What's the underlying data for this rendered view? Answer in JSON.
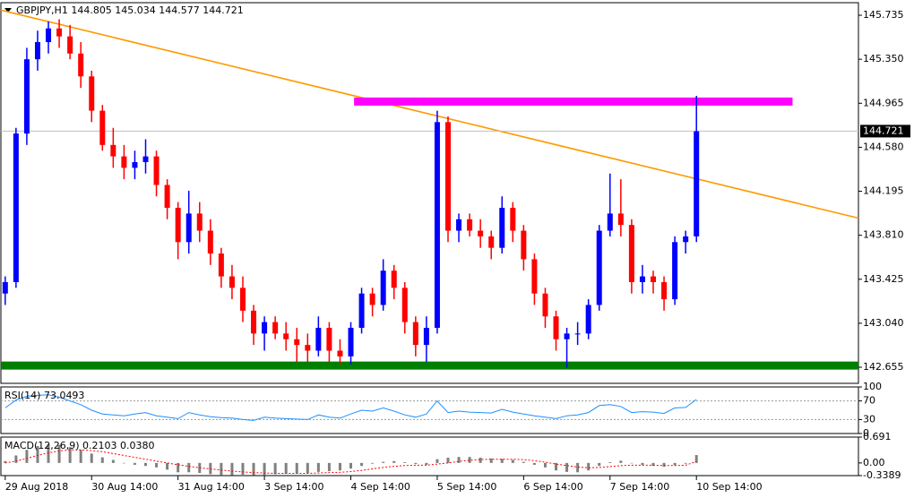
{
  "chart_data": [
    {
      "type": "candlestick",
      "title": "GBPJPY,H1  144.805 145.034 144.577 144.721",
      "x": [
        0,
        1,
        2,
        3,
        4,
        5,
        6,
        7,
        8,
        9,
        10,
        11,
        12,
        13,
        14,
        15,
        16,
        17,
        18,
        19,
        20,
        21,
        22,
        23,
        24,
        25,
        26,
        27,
        28,
        29,
        30,
        31,
        32,
        33,
        34,
        35,
        36,
        37,
        38,
        39,
        40,
        41,
        42,
        43,
        44,
        45,
        46,
        47,
        48,
        49,
        50,
        51,
        52,
        53,
        54,
        55,
        56,
        57,
        58,
        59,
        60,
        61,
        62,
        63,
        64
      ],
      "open": [
        143.3,
        143.4,
        144.7,
        145.35,
        145.5,
        145.62,
        145.55,
        145.4,
        145.2,
        144.9,
        144.6,
        144.5,
        144.4,
        144.45,
        144.5,
        144.25,
        144.05,
        143.75,
        144.0,
        143.85,
        143.65,
        143.45,
        143.35,
        143.15,
        142.95,
        143.05,
        142.95,
        142.9,
        142.85,
        142.8,
        143.0,
        142.8,
        142.75,
        143.0,
        143.3,
        143.2,
        143.5,
        143.35,
        143.05,
        142.85,
        143.0,
        144.8,
        143.85,
        143.95,
        143.85,
        143.8,
        143.7,
        144.05,
        143.85,
        143.6,
        143.3,
        143.1,
        142.9,
        142.95,
        142.95,
        143.2,
        143.85,
        144.0,
        143.9,
        143.4,
        143.45,
        143.4,
        143.25,
        143.75,
        143.8
      ],
      "high": [
        143.45,
        144.75,
        145.45,
        145.6,
        145.68,
        145.7,
        145.65,
        145.5,
        145.25,
        144.95,
        144.75,
        144.6,
        144.55,
        144.65,
        144.55,
        144.3,
        144.1,
        144.2,
        144.1,
        143.95,
        143.7,
        143.55,
        143.45,
        143.2,
        143.1,
        143.1,
        143.05,
        143.0,
        142.95,
        143.1,
        143.05,
        142.9,
        143.05,
        143.35,
        143.35,
        143.6,
        143.55,
        143.4,
        143.1,
        143.1,
        144.9,
        144.85,
        144.0,
        144.0,
        143.95,
        143.85,
        144.15,
        144.1,
        143.9,
        143.65,
        143.35,
        143.15,
        143.0,
        143.05,
        143.25,
        143.9,
        144.35,
        144.3,
        143.95,
        143.55,
        143.5,
        143.45,
        143.8,
        143.85,
        145.03
      ],
      "low": [
        143.2,
        143.35,
        144.6,
        145.25,
        145.4,
        145.45,
        145.35,
        145.1,
        144.8,
        144.55,
        144.4,
        144.3,
        144.3,
        144.35,
        144.15,
        143.95,
        143.6,
        143.65,
        143.75,
        143.55,
        143.35,
        143.25,
        143.05,
        142.85,
        142.8,
        142.9,
        142.8,
        142.7,
        142.7,
        142.75,
        142.7,
        142.68,
        142.68,
        142.95,
        143.1,
        143.15,
        143.25,
        142.95,
        142.75,
        142.7,
        142.95,
        143.75,
        143.75,
        143.8,
        143.7,
        143.6,
        143.65,
        143.75,
        143.5,
        143.2,
        143.0,
        142.8,
        142.65,
        142.85,
        142.9,
        143.15,
        143.8,
        143.8,
        143.3,
        143.3,
        143.3,
        143.15,
        143.2,
        143.65,
        143.75
      ],
      "close": [
        143.4,
        144.7,
        145.35,
        145.5,
        145.62,
        145.55,
        145.4,
        145.2,
        144.9,
        144.6,
        144.5,
        144.4,
        144.45,
        144.5,
        144.25,
        144.05,
        143.75,
        144.0,
        143.85,
        143.65,
        143.45,
        143.35,
        143.15,
        142.95,
        143.05,
        142.95,
        142.9,
        142.85,
        142.8,
        143.0,
        142.8,
        142.75,
        143.0,
        143.3,
        143.2,
        143.5,
        143.35,
        143.05,
        142.85,
        143.0,
        144.8,
        143.85,
        143.95,
        143.85,
        143.8,
        143.7,
        144.05,
        143.85,
        143.6,
        143.3,
        143.1,
        142.9,
        142.95,
        142.95,
        143.2,
        143.85,
        144.0,
        143.9,
        143.4,
        143.45,
        143.4,
        143.25,
        143.75,
        143.8,
        144.72
      ],
      "up_color": "#0000ff",
      "down_color": "#ff0000",
      "last_price": 144.721,
      "xlim": [
        -0.4,
        79
      ],
      "xticks": [
        {
          "value": 0,
          "label": "29 Aug 2018"
        },
        {
          "value": 8,
          "label": "30 Aug 14:00"
        },
        {
          "value": 16,
          "label": "31 Aug 14:00"
        },
        {
          "value": 24,
          "label": "3 Sep 14:00"
        },
        {
          "value": 32,
          "label": "4 Sep 14:00"
        },
        {
          "value": 40,
          "label": "5 Sep 14:00"
        },
        {
          "value": 48,
          "label": "6 Sep 14:00"
        },
        {
          "value": 56,
          "label": "7 Sep 14:00"
        },
        {
          "value": 64,
          "label": "10 Sep 14:00"
        }
      ],
      "ylim": [
        142.514,
        145.845
      ],
      "yticks": [
        145.735,
        {
          "value": 145.35,
          "label": "145.350"
        },
        144.965,
        {
          "value": 144.58,
          "label": "144.580"
        },
        144.195,
        {
          "value": 143.81,
          "label": "143.810"
        },
        143.425,
        {
          "value": 143.04,
          "label": "143.040"
        },
        142.655
      ],
      "lines": [
        {
          "kind": "trendline",
          "color": "#ff9900",
          "x": [
            -0.4,
            79
          ],
          "y": [
            145.78,
            143.96
          ]
        },
        {
          "kind": "band",
          "color": "#ff00ff",
          "x": [
            32.3,
            72.9
          ],
          "y": [
            144.98,
            144.98
          ]
        },
        {
          "kind": "band",
          "color": "#008000",
          "x": [
            -0.4,
            79
          ],
          "y": [
            142.67,
            142.67
          ]
        }
      ]
    },
    {
      "type": "line",
      "title": "RSI(14) 73.0493",
      "color": "#1e90ff",
      "values": [
        55,
        72,
        80,
        82,
        83,
        78,
        70,
        62,
        50,
        42,
        40,
        38,
        42,
        45,
        38,
        35,
        32,
        45,
        40,
        36,
        34,
        33,
        30,
        28,
        35,
        33,
        32,
        31,
        30,
        40,
        35,
        33,
        42,
        50,
        48,
        55,
        48,
        40,
        35,
        42,
        70,
        45,
        48,
        46,
        45,
        44,
        52,
        46,
        42,
        38,
        35,
        32,
        38,
        40,
        45,
        60,
        62,
        58,
        45,
        47,
        46,
        43,
        55,
        56,
        73
      ],
      "ylim": [
        0,
        100
      ],
      "yticks": [
        100,
        70,
        30,
        0
      ],
      "levels": [
        70,
        30
      ]
    },
    {
      "type": "macd",
      "title": "MACD(12,26,9) 0.2103 0.0380",
      "series": [
        {
          "kind": "bar",
          "color": "#808080",
          "values": [
            0.05,
            0.2,
            0.35,
            0.45,
            0.5,
            0.48,
            0.42,
            0.35,
            0.25,
            0.15,
            0.08,
            0.0,
            -0.05,
            -0.08,
            -0.12,
            -0.18,
            -0.25,
            -0.25,
            -0.27,
            -0.3,
            -0.32,
            -0.33,
            -0.34,
            -0.33,
            -0.32,
            -0.3,
            -0.29,
            -0.28,
            -0.27,
            -0.24,
            -0.22,
            -0.2,
            -0.15,
            -0.08,
            -0.02,
            0.03,
            0.05,
            0.02,
            -0.03,
            -0.05,
            0.1,
            0.14,
            0.16,
            0.16,
            0.14,
            0.12,
            0.11,
            0.08,
            0.03,
            -0.05,
            -0.12,
            -0.2,
            -0.24,
            -0.25,
            -0.2,
            -0.08,
            0.02,
            0.06,
            0.0,
            -0.05,
            -0.08,
            -0.1,
            -0.06,
            -0.02,
            0.21
          ]
        },
        {
          "kind": "line",
          "color": "#ff0000",
          "values": [
            0.0,
            0.05,
            0.12,
            0.2,
            0.27,
            0.32,
            0.35,
            0.35,
            0.33,
            0.3,
            0.25,
            0.2,
            0.15,
            0.1,
            0.05,
            0.0,
            -0.05,
            -0.09,
            -0.13,
            -0.16,
            -0.19,
            -0.22,
            -0.24,
            -0.26,
            -0.27,
            -0.28,
            -0.28,
            -0.28,
            -0.28,
            -0.27,
            -0.26,
            -0.25,
            -0.23,
            -0.2,
            -0.16,
            -0.12,
            -0.09,
            -0.07,
            -0.06,
            -0.06,
            -0.03,
            0.0,
            0.04,
            0.07,
            0.09,
            0.1,
            0.1,
            0.1,
            0.09,
            0.06,
            0.02,
            -0.03,
            -0.07,
            -0.11,
            -0.13,
            -0.12,
            -0.1,
            -0.07,
            -0.06,
            -0.06,
            -0.06,
            -0.07,
            -0.07,
            -0.06,
            0.04
          ]
        }
      ],
      "ylim": [
        -0.3389,
        0.691
      ],
      "yticks": [
        0.691,
        {
          "value": 0,
          "label": "0.00"
        },
        -0.3389
      ]
    }
  ]
}
